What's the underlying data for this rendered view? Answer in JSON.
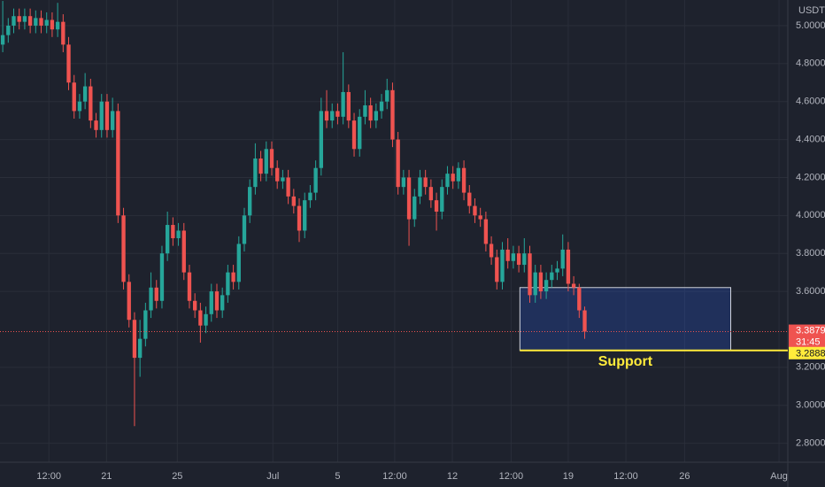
{
  "chart_data": {
    "type": "candlestick",
    "currency": "USDT",
    "up_color": "#26a69a",
    "down_color": "#ef5350",
    "grid": true,
    "open": [
      4.9,
      4.95,
      5.0,
      5.05,
      5.02,
      5.05,
      5.0,
      5.04,
      5.0,
      5.03,
      4.98,
      5.02,
      4.9,
      4.7,
      4.55,
      4.6,
      4.68,
      4.5,
      4.45,
      4.6,
      4.45,
      4.55,
      4.0,
      3.65,
      3.45,
      3.25,
      3.35,
      3.5,
      3.62,
      3.55,
      3.8,
      3.95,
      3.88,
      3.92,
      3.7,
      3.55,
      3.5,
      3.42,
      3.48,
      3.6,
      3.5,
      3.58,
      3.7,
      3.65,
      3.85,
      4.0,
      4.15,
      4.3,
      4.22,
      4.35,
      4.25,
      4.18,
      4.2,
      4.1,
      4.05,
      3.92,
      4.08,
      4.12,
      4.25,
      4.55,
      4.5,
      4.55,
      4.52,
      4.65,
      4.5,
      4.35,
      4.52,
      4.58,
      4.5,
      4.55,
      4.6,
      4.66,
      4.4,
      4.15,
      4.2,
      3.98,
      4.1,
      4.2,
      4.15,
      4.08,
      4.02,
      4.15,
      4.22,
      4.18,
      4.25,
      4.12,
      4.05,
      4.0,
      3.98,
      3.85,
      3.78,
      3.65,
      3.82,
      3.76,
      3.8,
      3.74,
      3.8,
      3.58,
      3.7,
      3.6,
      3.66,
      3.7,
      3.72,
      3.82,
      3.64,
      3.62,
      3.5
    ],
    "high": [
      5.13,
      5.04,
      5.09,
      5.09,
      5.09,
      5.09,
      5.08,
      5.08,
      5.07,
      5.07,
      5.12,
      5.06,
      4.94,
      4.74,
      4.64,
      4.75,
      4.72,
      4.54,
      4.64,
      4.64,
      4.62,
      4.59,
      4.04,
      3.69,
      3.49,
      3.45,
      3.54,
      3.7,
      3.66,
      3.84,
      4.02,
      3.99,
      3.96,
      3.96,
      3.74,
      3.59,
      3.54,
      3.52,
      3.64,
      3.64,
      3.62,
      3.74,
      3.74,
      3.89,
      4.04,
      4.19,
      4.38,
      4.34,
      4.39,
      4.39,
      4.29,
      4.24,
      4.24,
      4.14,
      4.09,
      4.12,
      4.16,
      4.29,
      4.62,
      4.66,
      4.59,
      4.59,
      4.86,
      4.69,
      4.54,
      4.56,
      4.66,
      4.62,
      4.59,
      4.64,
      4.72,
      4.7,
      4.44,
      4.24,
      4.24,
      4.14,
      4.24,
      4.24,
      4.19,
      4.12,
      4.19,
      4.26,
      4.26,
      4.28,
      4.29,
      4.16,
      4.09,
      4.04,
      4.02,
      3.89,
      3.82,
      3.86,
      3.88,
      3.84,
      3.84,
      3.88,
      3.84,
      3.74,
      3.74,
      3.7,
      3.74,
      3.76,
      3.9,
      3.86,
      3.68,
      3.64,
      3.52
    ],
    "low": [
      4.86,
      4.91,
      4.96,
      4.98,
      4.98,
      4.96,
      4.96,
      4.96,
      4.96,
      4.94,
      4.94,
      4.86,
      4.66,
      4.51,
      4.51,
      4.56,
      4.46,
      4.41,
      4.41,
      4.41,
      4.41,
      3.96,
      3.61,
      3.41,
      2.89,
      3.15,
      3.31,
      3.46,
      3.51,
      3.51,
      3.76,
      3.84,
      3.84,
      3.66,
      3.51,
      3.46,
      3.33,
      3.38,
      3.44,
      3.46,
      3.46,
      3.54,
      3.61,
      3.61,
      3.81,
      3.96,
      4.11,
      4.18,
      4.18,
      4.21,
      4.14,
      4.14,
      4.06,
      4.01,
      3.86,
      3.88,
      4.04,
      4.08,
      4.21,
      4.46,
      4.46,
      4.48,
      4.48,
      4.46,
      4.31,
      4.31,
      4.48,
      4.46,
      4.46,
      4.51,
      4.56,
      4.36,
      4.11,
      4.11,
      3.84,
      3.94,
      4.06,
      4.11,
      4.04,
      3.92,
      3.98,
      4.11,
      4.14,
      4.14,
      4.08,
      4.01,
      3.96,
      3.94,
      3.81,
      3.74,
      3.61,
      3.61,
      3.72,
      3.72,
      3.7,
      3.7,
      3.54,
      3.54,
      3.56,
      3.56,
      3.62,
      3.66,
      3.68,
      3.6,
      3.58,
      3.46,
      3.35
    ],
    "close": [
      4.95,
      5.0,
      5.05,
      5.02,
      5.05,
      5.0,
      5.04,
      5.0,
      5.03,
      4.98,
      5.02,
      4.9,
      4.7,
      4.55,
      4.6,
      4.68,
      4.5,
      4.45,
      4.6,
      4.45,
      4.55,
      4.0,
      3.65,
      3.45,
      3.25,
      3.35,
      3.5,
      3.62,
      3.55,
      3.8,
      3.95,
      3.88,
      3.92,
      3.7,
      3.55,
      3.5,
      3.42,
      3.48,
      3.6,
      3.5,
      3.58,
      3.7,
      3.65,
      3.85,
      4.0,
      4.15,
      4.3,
      4.22,
      4.35,
      4.25,
      4.18,
      4.2,
      4.1,
      4.05,
      3.92,
      4.08,
      4.12,
      4.25,
      4.55,
      4.5,
      4.55,
      4.52,
      4.65,
      4.5,
      4.35,
      4.52,
      4.58,
      4.5,
      4.55,
      4.6,
      4.66,
      4.4,
      4.15,
      4.2,
      3.98,
      4.1,
      4.2,
      4.15,
      4.08,
      4.02,
      4.15,
      4.22,
      4.18,
      4.25,
      4.12,
      4.05,
      4.0,
      3.98,
      3.85,
      3.78,
      3.65,
      3.82,
      3.76,
      3.8,
      3.74,
      3.8,
      3.58,
      3.7,
      3.6,
      3.66,
      3.7,
      3.72,
      3.82,
      3.64,
      3.62,
      3.5,
      3.3879
    ],
    "xlim": [
      -0.5,
      143
    ],
    "xticks": [
      {
        "value": 8.4,
        "label": "12:00"
      },
      {
        "value": 18.9,
        "label": "21"
      },
      {
        "value": 31.8,
        "label": "25"
      },
      {
        "value": 49.2,
        "label": "Jul"
      },
      {
        "value": 61,
        "label": "5"
      },
      {
        "value": 71.4,
        "label": "12:00"
      },
      {
        "value": 81.9,
        "label": "12"
      },
      {
        "value": 92.6,
        "label": "12:00"
      },
      {
        "value": 103,
        "label": "19"
      },
      {
        "value": 113.5,
        "label": "12:00"
      },
      {
        "value": 124.2,
        "label": "26"
      },
      {
        "value": 141.4,
        "label": "Aug"
      }
    ],
    "ylim": [
      2.7,
      5.135
    ],
    "yticks": [
      {
        "value": 5.0,
        "label": "5.0000"
      },
      {
        "value": 4.8,
        "label": "4.8000"
      },
      {
        "value": 4.6,
        "label": "4.6000"
      },
      {
        "value": 4.4,
        "label": "4.4000"
      },
      {
        "value": 4.2,
        "label": "4.2000"
      },
      {
        "value": 4.0,
        "label": "4.0000"
      },
      {
        "value": 3.8,
        "label": "3.8000"
      },
      {
        "value": 3.6,
        "label": "3.6000"
      },
      {
        "value": 3.2,
        "label": "3.2000"
      },
      {
        "value": 3.0,
        "label": "3.0000"
      },
      {
        "value": 2.8,
        "label": "2.8000"
      }
    ],
    "last_price": 3.3879,
    "countdown": "31:45",
    "support": {
      "value": 3.2888,
      "text": "Support",
      "color": "#ffeb3b"
    },
    "zone": {
      "x": [
        94.2,
        132.6
      ],
      "y": [
        3.2888,
        3.62
      ],
      "color": "#2962ff"
    }
  }
}
